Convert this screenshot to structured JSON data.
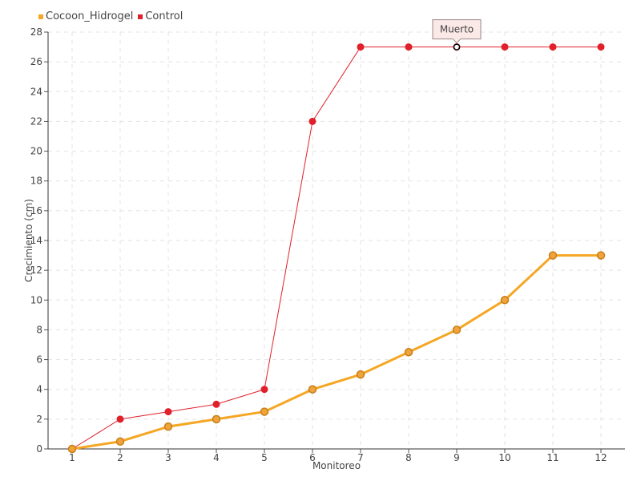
{
  "legend": {
    "items": [
      {
        "name": "Cocoon_Hidrogel",
        "color": "#f5a623"
      },
      {
        "name": "Control",
        "color": "#e0202a"
      }
    ]
  },
  "tooltip": {
    "text": "Muerto",
    "series": "Control",
    "category": "9"
  },
  "chart_data": {
    "type": "line",
    "categories": [
      "1",
      "2",
      "3",
      "4",
      "5",
      "6",
      "7",
      "8",
      "9",
      "10",
      "11",
      "12"
    ],
    "series": [
      {
        "name": "Cocoon_Hidrogel",
        "color": "#f5a623",
        "marker_fill": "#f0a33a",
        "marker_stroke": "#c77f1a",
        "values": [
          0,
          0.5,
          1.5,
          2,
          2.5,
          4,
          5,
          6.5,
          8,
          10,
          13,
          13
        ]
      },
      {
        "name": "Control",
        "color": "#e0202a",
        "marker_fill": "#e0202a",
        "marker_stroke": "#e0202a",
        "values": [
          0,
          2,
          2.5,
          3,
          4,
          22,
          27,
          27,
          27,
          27,
          27,
          27
        ]
      }
    ],
    "title": "",
    "xlabel": "Monitoreo",
    "ylabel": "Crecimiento (cm)",
    "ylim": [
      0,
      28
    ],
    "ytick_step": 2,
    "grid": true,
    "legend_position": "top-left"
  }
}
